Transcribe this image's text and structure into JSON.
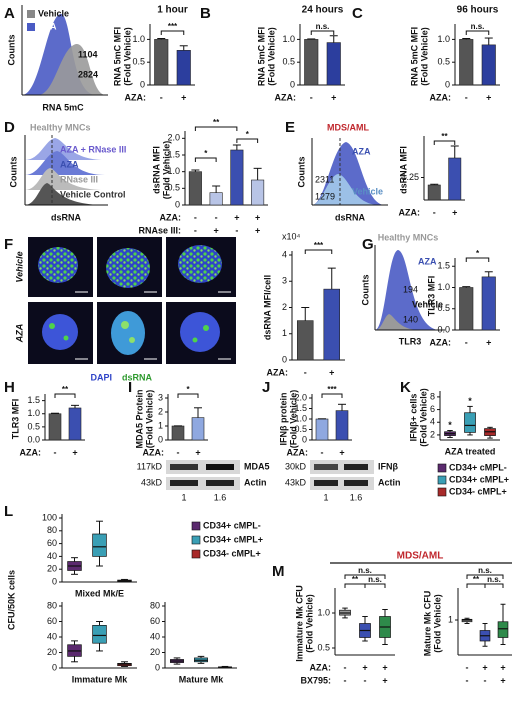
{
  "letters": [
    "A",
    "B",
    "C",
    "D",
    "E",
    "F",
    "G",
    "H",
    "I",
    "J",
    "K",
    "L",
    "M"
  ],
  "flow": {
    "A": {
      "legend": [
        "Vehicle",
        "AZA"
      ],
      "mfi": [
        "1104",
        "2824"
      ],
      "ylabel": "Counts",
      "xlabel": "RNA 5mC"
    },
    "D": {
      "title": "Healthy MNCs",
      "labels": [
        "AZA + RNase III",
        "AZA",
        "RNase III",
        "Vehicle Control"
      ],
      "ylabel": "Counts",
      "xlabel": "dsRNA"
    },
    "E": {
      "title": "MDS/AML",
      "labels": [
        "AZA",
        "Vehicle"
      ],
      "mfi": [
        "2311",
        "1279"
      ],
      "ylabel": "Counts",
      "xlabel": "dsRNA"
    },
    "G": {
      "title": "Healthy MNCs",
      "labels": [
        "AZA",
        "Vehicle"
      ],
      "mfi": [
        "194",
        "140"
      ],
      "ylabel": "Counts",
      "xlabel": "TLR3"
    }
  },
  "images": {
    "rows": [
      "Vehicle",
      "AZA"
    ],
    "stains": [
      "DAPI",
      "dsRNA"
    ]
  },
  "blots": [
    {
      "bands": [
        "117kD",
        "43kD"
      ],
      "names": [
        "MDA5",
        "Actin"
      ],
      "quant": [
        "1",
        "1.6"
      ]
    },
    {
      "bands": [
        "30kD",
        "43kD"
      ],
      "names": [
        "IFNβ",
        "Actin"
      ],
      "quant": [
        "1",
        "1.6"
      ]
    }
  ],
  "misc": {
    "cfu_axis_label": "CFU/50K cells",
    "m_title": "MDS/AML"
  },
  "legends": [
    {
      "entries": [
        {
          "name": "CD34+ cMPL-",
          "color": "#5b2a6e"
        },
        {
          "name": "CD34+ cMPL+",
          "color": "#3a9fb5"
        },
        {
          "name": "CD34- cMPL+",
          "color": "#a82a2a"
        }
      ]
    },
    {
      "entries": [
        {
          "name": "CD34+ cMPL-",
          "color": "#5b2a6e"
        },
        {
          "name": "CD34+ cMPL+",
          "color": "#3a9fb5"
        },
        {
          "name": "CD34- cMPL+",
          "color": "#a82a2a"
        }
      ]
    }
  ],
  "charts": [
    {
      "type": "bar",
      "title": "1 hour",
      "ylabel": [
        "RNA 5mC MFI",
        "(Fold Vehicle)"
      ],
      "ylim": [
        0,
        1.25
      ],
      "yticks": [
        0,
        0.5,
        {
          "value": 1,
          "label": "1.0"
        }
      ],
      "values": [
        1,
        0.76
      ],
      "errors": [
        0.02,
        0.1
      ],
      "colors": [
        "#555555",
        "#2c3e9e"
      ],
      "treatments": [
        {
          "label": "AZA:",
          "values": [
            "-",
            "+"
          ]
        }
      ],
      "sig": [
        "***"
      ]
    },
    {
      "type": "bar",
      "title": "24 hours",
      "ylabel": [
        "RNA 5mC MFI",
        "(Fold Vehicle)"
      ],
      "ylim": [
        0,
        1.25
      ],
      "yticks": [
        0,
        0.5,
        {
          "value": 1,
          "label": "1.0"
        }
      ],
      "values": [
        1,
        0.93
      ],
      "errors": [
        0.01,
        0.15
      ],
      "colors": [
        "#555555",
        "#2c3e9e"
      ],
      "treatments": [
        {
          "label": "AZA:",
          "values": [
            "-",
            "+"
          ]
        }
      ],
      "sig": [
        "n.s."
      ]
    },
    {
      "type": "bar",
      "title": "96 hours",
      "ylabel": [
        "RNA 5mC MFI",
        "(Fold Vehicle)"
      ],
      "ylim": [
        0,
        1.25
      ],
      "yticks": [
        0,
        0.5,
        {
          "value": 1,
          "label": "1.0"
        }
      ],
      "values": [
        1,
        0.88
      ],
      "errors": [
        0.02,
        0.15
      ],
      "colors": [
        "#555555",
        "#2c3e9e"
      ],
      "treatments": [
        {
          "label": "AZA:",
          "values": [
            "-",
            "+"
          ]
        }
      ],
      "sig": [
        "n.s."
      ]
    },
    {
      "type": "bar",
      "ylabel": [
        "dsRNA MFI",
        "(Fold Vehicle)"
      ],
      "ylim": [
        0,
        2.1
      ],
      "yticks": [
        0,
        0.5,
        {
          "value": 1,
          "label": "1.0"
        },
        1.5,
        {
          "value": 2,
          "label": "2.0"
        }
      ],
      "values": [
        1,
        0.37,
        1.65,
        0.75
      ],
      "errors": [
        0.05,
        0.2,
        0.15,
        0.35
      ],
      "colors": [
        "#555555",
        "#b8c4e6",
        "#3b4fb0",
        "#b8c4e6"
      ],
      "treatments": [
        {
          "label": "AZA:",
          "values": [
            "-",
            "-",
            "+",
            "+"
          ]
        },
        {
          "label": "RNAse III:",
          "values": [
            "-",
            "+",
            "-",
            "+"
          ]
        }
      ],
      "sig": [
        "**",
        "*",
        "*"
      ]
    },
    {
      "type": "bar",
      "ylabel": [
        "dsRNA MFI"
      ],
      "ylim": [
        1.1,
        1.5
      ],
      "yticks": [
        1.25
      ],
      "values": [
        1.2,
        1.38
      ],
      "errors": [
        0.005,
        0.08
      ],
      "colors": [
        "#555555",
        "#3b4fb0"
      ],
      "treatments": [
        {
          "label": "AZA:",
          "values": [
            "-",
            "+"
          ]
        }
      ],
      "sig": [
        "**"
      ]
    },
    {
      "type": "bar",
      "ylabel": [
        "dsRNA MFI/cell"
      ],
      "unit": "x10⁴",
      "ylim": [
        0,
        4
      ],
      "yticks": [
        0,
        1,
        2,
        3,
        4
      ],
      "values": [
        1.5,
        2.7
      ],
      "errors": [
        0.5,
        0.8
      ],
      "colors": [
        "#555555",
        "#3b4fb0"
      ],
      "treatments": [
        {
          "label": "AZA:",
          "values": [
            "-",
            "+"
          ]
        }
      ],
      "sig": [
        "***"
      ]
    },
    {
      "type": "bar",
      "ylabel": [
        "TLR3 MFI"
      ],
      "ylim": [
        0,
        1.6
      ],
      "yticks": [
        {
          "value": 0,
          "label": "0.0"
        },
        0.5,
        {
          "value": 1,
          "label": "1.0"
        },
        1.5
      ],
      "values": [
        1,
        1.25
      ],
      "errors": [
        0.02,
        0.12
      ],
      "colors": [
        "#555555",
        "#3b4fb0"
      ],
      "treatments": [
        {
          "label": "AZA:",
          "values": [
            "-",
            "+"
          ]
        }
      ],
      "sig": [
        "*"
      ]
    },
    {
      "type": "bar",
      "ylabel": [
        "TLR3 MFI"
      ],
      "ylim": [
        0,
        1.6
      ],
      "yticks": [
        {
          "value": 0,
          "label": "0.0"
        },
        0.5,
        {
          "value": 1,
          "label": "1.0"
        },
        1.5
      ],
      "values": [
        1,
        1.22
      ],
      "errors": [
        0.02,
        0.1
      ],
      "colors": [
        "#555555",
        "#3b4fb0"
      ],
      "treatments": [
        {
          "label": "AZA:",
          "values": [
            "-",
            "+"
          ]
        }
      ],
      "sig": [
        "**"
      ]
    },
    {
      "type": "bar",
      "ylabel": [
        "MDA5 Protein",
        "(Fold Vehicle)"
      ],
      "ylim": [
        0,
        3
      ],
      "yticks": [
        0,
        1,
        2,
        3
      ],
      "values": [
        1,
        1.6
      ],
      "errors": [
        0.01,
        0.7
      ],
      "colors": [
        "#555555",
        "#8fa8e0"
      ],
      "treatments": [
        {
          "label": "AZA:",
          "values": [
            "-",
            "+"
          ]
        }
      ],
      "sig": [
        "*"
      ]
    },
    {
      "type": "bar",
      "ylabel": [
        "IFNβ protein",
        "(Fold Vehicle)"
      ],
      "ylim": [
        0,
        2
      ],
      "yticks": [
        0,
        0.5,
        {
          "value": 1,
          "label": "1.0"
        },
        1.5,
        {
          "value": 2,
          "label": "2.0"
        }
      ],
      "values": [
        1,
        1.4
      ],
      "errors": [
        0.01,
        0.3
      ],
      "colors": [
        "#8fa8e0",
        "#3b4fb0"
      ],
      "treatments": [
        {
          "label": "AZA:",
          "values": [
            "-",
            "+"
          ]
        }
      ],
      "sig": [
        "***"
      ]
    },
    {
      "type": "box",
      "ylabel": [
        "IFNβ+ cells",
        "(Fold Vehicle)"
      ],
      "xlabel": "AZA treated",
      "ylim": [
        1.2,
        8.3
      ],
      "yticks": [
        2,
        4,
        6,
        8
      ],
      "boxes": [
        [
          1.6,
          1.9,
          2.2,
          2.5,
          2.7
        ],
        [
          2,
          2.4,
          3.5,
          5.5,
          6.5
        ],
        [
          1.5,
          1.9,
          2.5,
          3,
          3.2
        ]
      ],
      "colors": [
        "#5b2a6e",
        "#3a9fb5",
        "#a82a2a"
      ],
      "sig": [
        "*",
        "*"
      ]
    },
    {
      "type": "box",
      "xlabel": "Mixed Mk/E",
      "ylim": [
        0,
        100
      ],
      "yticks": [
        0,
        20,
        40,
        60,
        80,
        100
      ],
      "boxes": [
        [
          12,
          18,
          25,
          32,
          38
        ],
        [
          25,
          40,
          55,
          75,
          95
        ],
        [
          0,
          1,
          2,
          3,
          4
        ]
      ],
      "colors": [
        "#5b2a6e",
        "#3a9fb5",
        "#a82a2a"
      ]
    },
    {
      "type": "box",
      "xlabel": "Immature Mk",
      "ylim": [
        0,
        80
      ],
      "yticks": [
        0,
        20,
        40,
        60,
        80
      ],
      "boxes": [
        [
          8,
          15,
          22,
          30,
          35
        ],
        [
          22,
          32,
          42,
          55,
          60
        ],
        [
          2,
          3,
          5,
          6,
          8
        ]
      ],
      "colors": [
        "#5b2a6e",
        "#3a9fb5",
        "#a82a2a"
      ]
    },
    {
      "type": "box",
      "xlabel": "Mature Mk",
      "ylim": [
        0,
        80
      ],
      "yticks": [
        0,
        20,
        40,
        60,
        80
      ],
      "boxes": [
        [
          5,
          7,
          9,
          11,
          13
        ],
        [
          6,
          8,
          10,
          13,
          15
        ],
        [
          0,
          0.5,
          1,
          1.5,
          2
        ]
      ],
      "colors": [
        "#5b2a6e",
        "#3a9fb5",
        "#a82a2a"
      ]
    },
    {
      "type": "box",
      "ylabel": [
        "Immature Mk CFU",
        "(Fold Vehicle)"
      ],
      "ylim": [
        0.4,
        1.3
      ],
      "yticks": [
        0.5,
        {
          "value": 1,
          "label": "1.0"
        }
      ],
      "boxes": [
        [
          0.93,
          0.97,
          1,
          1.04,
          1.07
        ],
        [
          0.6,
          0.65,
          0.75,
          0.85,
          0.95
        ],
        [
          0.55,
          0.65,
          0.8,
          0.95,
          1.05
        ]
      ],
      "colors": [
        "#999999",
        "#3b4fb0",
        "#2e8a4a"
      ],
      "treatments": [
        {
          "label": "AZA:",
          "values": [
            "-",
            "+",
            "+"
          ]
        },
        {
          "label": "BX795:",
          "values": [
            "-",
            "-",
            "+"
          ]
        }
      ],
      "sig": [
        "n.s.",
        "**",
        "n.s."
      ]
    },
    {
      "type": "box",
      "ylabel": [
        "Mature Mk CFU",
        "(Fold Vehicle)"
      ],
      "ylim": [
        0,
        1.8
      ],
      "yticks": [
        1
      ],
      "boxes": [
        [
          0.9,
          0.95,
          1,
          1.02,
          1.05
        ],
        [
          0.25,
          0.4,
          0.55,
          0.7,
          0.9
        ],
        [
          0.3,
          0.5,
          0.75,
          0.95,
          1.45
        ]
      ],
      "colors": [
        "#999999",
        "#3b4fb0",
        "#2e8a4a"
      ],
      "treatments": [
        {
          "values": [
            "-",
            "+",
            "+"
          ]
        },
        {
          "values": [
            "-",
            "-",
            "+"
          ]
        }
      ],
      "sig": [
        "n.s.",
        "**",
        "n.s."
      ]
    }
  ]
}
